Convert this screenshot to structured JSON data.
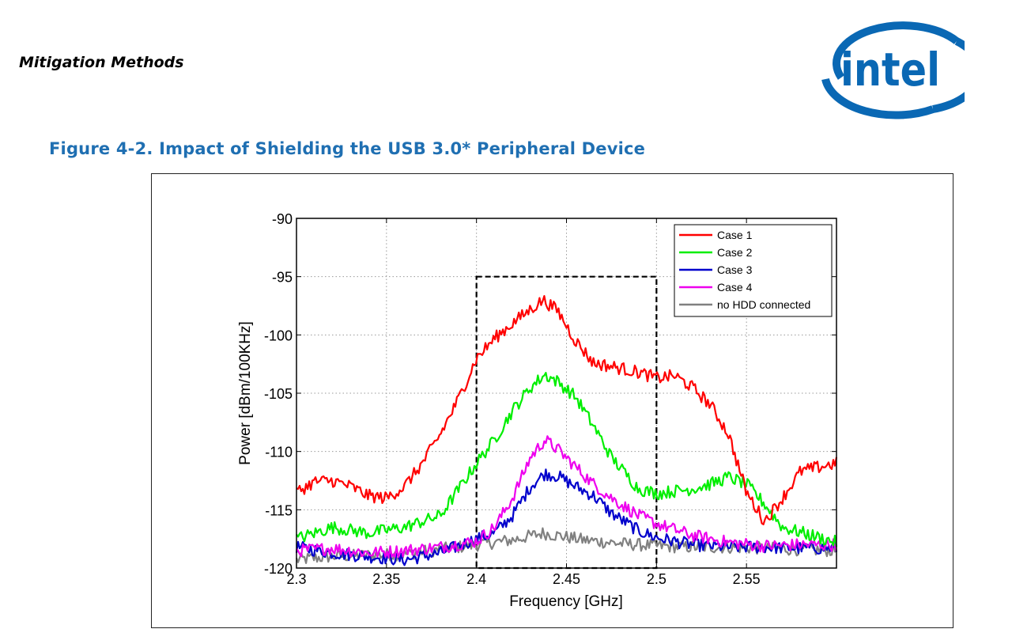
{
  "header": {
    "section_title": "Mitigation Methods",
    "logo_text": "intel",
    "logo_color": "#0a68b4"
  },
  "figure": {
    "caption": "Figure 4-2. Impact of Shielding the USB 3.0* Peripheral Device",
    "caption_color": "#1f6fb2"
  },
  "chart_data": {
    "type": "line",
    "title": "",
    "xlabel": "Frequency [GHz]",
    "ylabel": "Power [dBm/100KHz]",
    "xlim": [
      2.3,
      2.6
    ],
    "ylim": [
      -120,
      -90
    ],
    "xticks": [
      2.3,
      2.35,
      2.4,
      2.45,
      2.5,
      2.55
    ],
    "xtick_labels": [
      "2.3",
      "2.35",
      "2.4",
      "2.45",
      "2.5",
      "2.55"
    ],
    "yticks": [
      -120,
      -115,
      -110,
      -105,
      -100,
      -95,
      -90
    ],
    "ytick_labels": [
      "-120",
      "-115",
      "-110",
      "-105",
      "-100",
      "-95",
      "-90"
    ],
    "grid": true,
    "legend_position": "top-right",
    "highlight_box": {
      "x": [
        2.4,
        2.5
      ],
      "y": [
        -120,
        -95
      ],
      "style": "dashed"
    },
    "series": [
      {
        "name": "Case 1",
        "color": "#ff0000",
        "x": [
          2.3,
          2.31,
          2.32,
          2.33,
          2.34,
          2.35,
          2.36,
          2.37,
          2.38,
          2.39,
          2.4,
          2.41,
          2.42,
          2.43,
          2.437,
          2.445,
          2.455,
          2.465,
          2.475,
          2.49,
          2.5,
          2.51,
          2.52,
          2.53,
          2.54,
          2.55,
          2.56,
          2.57,
          2.58,
          2.6
        ],
        "y": [
          -113.5,
          -112.6,
          -112.5,
          -113.0,
          -113.8,
          -114.0,
          -113.0,
          -111.0,
          -108.5,
          -105.5,
          -102.0,
          -100.3,
          -99.0,
          -97.8,
          -97.0,
          -97.9,
          -100.5,
          -102.4,
          -102.7,
          -103.2,
          -103.7,
          -103.5,
          -104.5,
          -106.0,
          -108.5,
          -113.5,
          -116.0,
          -114.0,
          -111.7,
          -111.0
        ]
      },
      {
        "name": "Case 2",
        "color": "#00ee00",
        "x": [
          2.3,
          2.32,
          2.34,
          2.36,
          2.38,
          2.4,
          2.41,
          2.42,
          2.43,
          2.438,
          2.445,
          2.455,
          2.465,
          2.475,
          2.49,
          2.5,
          2.51,
          2.52,
          2.53,
          2.54,
          2.55,
          2.56,
          2.57,
          2.6
        ],
        "y": [
          -117.5,
          -116.5,
          -117.0,
          -116.5,
          -115.5,
          -111.0,
          -109.0,
          -106.5,
          -104.5,
          -103.4,
          -104.0,
          -105.3,
          -107.8,
          -110.5,
          -113.2,
          -113.6,
          -113.4,
          -113.2,
          -112.8,
          -112.2,
          -112.8,
          -114.5,
          -116.5,
          -117.8
        ]
      },
      {
        "name": "Case 3",
        "color": "#0000cc",
        "x": [
          2.3,
          2.32,
          2.34,
          2.36,
          2.38,
          2.4,
          2.41,
          2.42,
          2.43,
          2.438,
          2.445,
          2.455,
          2.465,
          2.475,
          2.49,
          2.5,
          2.52,
          2.54,
          2.56,
          2.58,
          2.6
        ],
        "y": [
          -118.2,
          -118.7,
          -119.0,
          -119.3,
          -118.7,
          -117.5,
          -117.0,
          -115.5,
          -113.0,
          -111.9,
          -112.1,
          -113.0,
          -113.8,
          -115.3,
          -116.8,
          -117.4,
          -118.0,
          -118.2,
          -118.2,
          -118.3,
          -118.3
        ]
      },
      {
        "name": "Case 4",
        "color": "#ee00ee",
        "x": [
          2.3,
          2.32,
          2.34,
          2.36,
          2.38,
          2.4,
          2.41,
          2.42,
          2.43,
          2.438,
          2.445,
          2.455,
          2.465,
          2.475,
          2.49,
          2.5,
          2.52,
          2.54,
          2.56,
          2.58,
          2.6
        ],
        "y": [
          -118.5,
          -118.3,
          -118.7,
          -118.5,
          -118.2,
          -117.7,
          -116.5,
          -114.0,
          -110.5,
          -109.0,
          -109.8,
          -111.3,
          -112.8,
          -114.0,
          -115.5,
          -116.2,
          -117.2,
          -117.8,
          -118.1,
          -118.0,
          -118.0
        ]
      },
      {
        "name": "no HDD connected",
        "color": "#808080",
        "x": [
          2.3,
          2.32,
          2.34,
          2.36,
          2.38,
          2.4,
          2.42,
          2.437,
          2.46,
          2.48,
          2.5,
          2.52,
          2.54,
          2.56,
          2.58,
          2.6
        ],
        "y": [
          -119.3,
          -119.0,
          -118.9,
          -118.8,
          -118.4,
          -118.0,
          -117.6,
          -117.0,
          -117.6,
          -117.9,
          -118.1,
          -118.2,
          -118.2,
          -118.3,
          -118.4,
          -118.5
        ]
      }
    ]
  }
}
